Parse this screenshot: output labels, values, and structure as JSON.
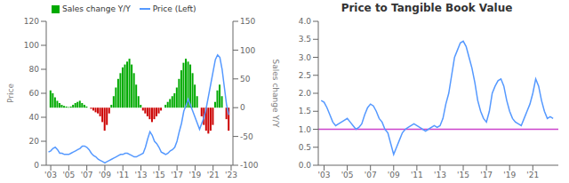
{
  "chart_data": [
    {
      "type": "bar",
      "ylabel": "Price",
      "y2label": "Sales change Y/Y",
      "legend": "upper left",
      "xlim": [
        2002.5,
        2023.2
      ],
      "xticks": [
        {
          "value": 2003,
          "label": "'03"
        },
        {
          "value": 2005,
          "label": "'05"
        },
        {
          "value": 2007,
          "label": "'07"
        },
        {
          "value": 2009,
          "label": "'09"
        },
        {
          "value": 2011,
          "label": "'11"
        },
        {
          "value": 2013,
          "label": "'13"
        },
        {
          "value": 2015,
          "label": "'15"
        },
        {
          "value": 2017,
          "label": "'17"
        },
        {
          "value": 2019,
          "label": "'19"
        },
        {
          "value": 2021,
          "label": "'21"
        },
        {
          "value": 2023,
          "label": "'23"
        }
      ],
      "ylim": [
        0,
        120
      ],
      "yticks": [
        0,
        20,
        40,
        60,
        80,
        100,
        120
      ],
      "y2lim": [
        -100,
        150
      ],
      "y2ticks": [
        -100,
        -50,
        0,
        50,
        100,
        150
      ],
      "series": [
        {
          "name": "Sales change Y/Y",
          "type": "bar",
          "axis": "y2",
          "color": "#00aa00",
          "x": [
            2003.0,
            2003.25,
            2003.5,
            2003.75,
            2004.0,
            2004.25,
            2004.5,
            2004.75,
            2005.0,
            2005.25,
            2005.5,
            2005.75,
            2006.0,
            2006.25,
            2006.5,
            2006.75,
            2007.0,
            2007.25,
            2007.5,
            2007.75,
            2008.0,
            2008.25,
            2008.5,
            2008.75,
            2009.0,
            2009.25,
            2009.5,
            2009.75,
            2010.0,
            2010.25,
            2010.5,
            2010.75,
            2011.0,
            2011.25,
            2011.5,
            2011.75,
            2012.0,
            2012.25,
            2012.5,
            2012.75,
            2013.0,
            2013.25,
            2013.5,
            2013.75,
            2014.0,
            2014.25,
            2014.5,
            2014.75,
            2015.0,
            2015.25,
            2015.5,
            2015.75,
            2016.0,
            2016.25,
            2016.5,
            2016.75,
            2017.0,
            2017.25,
            2017.5,
            2017.75,
            2018.0,
            2018.25,
            2018.5,
            2018.75,
            2019.0,
            2019.25,
            2019.5,
            2019.75,
            2020.0,
            2020.25,
            2020.5,
            2020.75,
            2021.0,
            2021.25,
            2021.5,
            2021.75,
            2022.0,
            2022.25,
            2022.5,
            2022.75
          ],
          "values": [
            30,
            25,
            18,
            12,
            8,
            5,
            3,
            2,
            1,
            2,
            5,
            8,
            10,
            12,
            8,
            5,
            2,
            0,
            -2,
            -5,
            -8,
            -10,
            -15,
            -25,
            -40,
            -30,
            -10,
            5,
            20,
            35,
            50,
            60,
            70,
            75,
            80,
            85,
            75,
            60,
            40,
            20,
            5,
            -5,
            -10,
            -15,
            -20,
            -25,
            -20,
            -15,
            -10,
            -5,
            0,
            5,
            10,
            15,
            20,
            25,
            35,
            50,
            65,
            78,
            85,
            80,
            75,
            60,
            40,
            20,
            0,
            -15,
            -30,
            -40,
            -45,
            -40,
            -30,
            10,
            30,
            40,
            20,
            0,
            -20,
            -40
          ],
          "colors": [
            "#00aa00",
            "#00aa00",
            "#00aa00",
            "#00aa00",
            "#00aa00",
            "#00aa00",
            "#00aa00",
            "#00aa00",
            "#00aa00",
            "#00aa00",
            "#00aa00",
            "#00aa00",
            "#00aa00",
            "#00aa00",
            "#00aa00",
            "#00aa00",
            "#00aa00",
            "#00aa00",
            "#cc0000",
            "#cc0000",
            "#cc0000",
            "#cc0000",
            "#cc0000",
            "#cc0000",
            "#cc0000",
            "#cc0000",
            "#cc0000",
            "#00aa00",
            "#00aa00",
            "#00aa00",
            "#00aa00",
            "#00aa00",
            "#00aa00",
            "#00aa00",
            "#00aa00",
            "#00aa00",
            "#00aa00",
            "#00aa00",
            "#00aa00",
            "#00aa00",
            "#00aa00",
            "#cc0000",
            "#cc0000",
            "#cc0000",
            "#cc0000",
            "#cc0000",
            "#cc0000",
            "#cc0000",
            "#cc0000",
            "#cc0000",
            "#00aa00",
            "#00aa00",
            "#00aa00",
            "#00aa00",
            "#00aa00",
            "#00aa00",
            "#00aa00",
            "#00aa00",
            "#00aa00",
            "#00aa00",
            "#00aa00",
            "#00aa00",
            "#00aa00",
            "#00aa00",
            "#00aa00",
            "#00aa00",
            "#00aa00",
            "#cc0000",
            "#cc0000",
            "#cc0000",
            "#cc0000",
            "#cc0000",
            "#cc0000",
            "#00aa00",
            "#00aa00",
            "#00aa00",
            "#00aa00",
            "#00aa00",
            "#cc0000",
            "#cc0000"
          ]
        },
        {
          "name": "Price (Left)",
          "type": "line",
          "color": "#5599ff",
          "x": [
            2002.75,
            2003.0,
            2003.25,
            2003.5,
            2003.75,
            2004.0,
            2004.25,
            2004.5,
            2004.75,
            2005.0,
            2005.25,
            2005.5,
            2005.75,
            2006.0,
            2006.25,
            2006.5,
            2006.75,
            2007.0,
            2007.25,
            2007.5,
            2007.75,
            2008.0,
            2008.25,
            2008.5,
            2008.75,
            2009.0,
            2009.25,
            2009.5,
            2009.75,
            2010.0,
            2010.25,
            2010.5,
            2010.75,
            2011.0,
            2011.25,
            2011.5,
            2011.75,
            2012.0,
            2012.25,
            2012.5,
            2012.75,
            2013.0,
            2013.25,
            2013.5,
            2013.75,
            2014.0,
            2014.25,
            2014.5,
            2014.75,
            2015.0,
            2015.25,
            2015.5,
            2015.75,
            2016.0,
            2016.25,
            2016.5,
            2016.75,
            2017.0,
            2017.25,
            2017.5,
            2017.75,
            2018.0,
            2018.25,
            2018.5,
            2018.75,
            2019.0,
            2019.25,
            2019.5,
            2019.75,
            2020.0,
            2020.25,
            2020.5,
            2020.75,
            2021.0,
            2021.25,
            2021.5,
            2021.75,
            2022.0,
            2022.25,
            2022.5,
            2022.75
          ],
          "values": [
            11,
            12,
            14,
            15,
            13,
            10,
            10,
            9,
            9,
            9,
            10,
            11,
            12,
            13,
            14,
            16,
            16,
            15,
            13,
            10,
            8,
            7,
            5,
            4,
            3,
            2,
            3,
            4,
            5,
            6,
            7,
            8,
            9,
            9,
            10,
            10,
            9,
            8,
            7,
            7,
            8,
            9,
            10,
            15,
            22,
            28,
            25,
            20,
            18,
            15,
            11,
            10,
            9,
            10,
            12,
            13,
            15,
            20,
            28,
            35,
            45,
            50,
            55,
            50,
            45,
            40,
            35,
            30,
            35,
            40,
            48,
            58,
            68,
            78,
            88,
            92,
            90,
            80,
            65,
            50,
            42
          ]
        }
      ]
    },
    {
      "type": "line",
      "title": "Price to Tangible Book Value",
      "xlim": [
        2002.5,
        2023.2
      ],
      "xticks": [
        {
          "value": 2003,
          "label": "'03"
        },
        {
          "value": 2005,
          "label": "'05"
        },
        {
          "value": 2007,
          "label": "'07"
        },
        {
          "value": 2009,
          "label": "'09"
        },
        {
          "value": 2011,
          "label": "'11"
        },
        {
          "value": 2013,
          "label": "'13"
        },
        {
          "value": 2015,
          "label": "'15"
        },
        {
          "value": 2017,
          "label": "'17"
        },
        {
          "value": 2019,
          "label": "'19"
        },
        {
          "value": 2021,
          "label": "'21"
        }
      ],
      "ylim": [
        0,
        4
      ],
      "yticks": [
        {
          "value": 0,
          "label": "0.0"
        },
        {
          "value": 0.5,
          "label": "0.5"
        },
        {
          "value": 1.0,
          "label": "1.0"
        },
        {
          "value": 1.5,
          "label": "1.5"
        },
        {
          "value": 2.0,
          "label": "2.0"
        },
        {
          "value": 2.5,
          "label": "2.5"
        },
        {
          "value": 3.0,
          "label": "3.0"
        },
        {
          "value": 3.5,
          "label": "3.5"
        },
        {
          "value": 4.0,
          "label": "4.0"
        }
      ],
      "reference_lines": [
        {
          "y": 1.0,
          "color": "#cc44cc"
        }
      ],
      "color": "#5599ff",
      "x": [
        2002.75,
        2003.0,
        2003.25,
        2003.5,
        2003.75,
        2004.0,
        2004.25,
        2004.5,
        2004.75,
        2005.0,
        2005.25,
        2005.5,
        2005.75,
        2006.0,
        2006.25,
        2006.5,
        2006.75,
        2007.0,
        2007.25,
        2007.5,
        2007.75,
        2008.0,
        2008.25,
        2008.5,
        2008.75,
        2009.0,
        2009.25,
        2009.5,
        2009.75,
        2010.0,
        2010.25,
        2010.5,
        2010.75,
        2011.0,
        2011.25,
        2011.5,
        2011.75,
        2012.0,
        2012.25,
        2012.5,
        2012.75,
        2013.0,
        2013.25,
        2013.5,
        2013.75,
        2014.0,
        2014.25,
        2014.5,
        2014.75,
        2015.0,
        2015.25,
        2015.5,
        2015.75,
        2016.0,
        2016.25,
        2016.5,
        2016.75,
        2017.0,
        2017.25,
        2017.5,
        2017.75,
        2018.0,
        2018.25,
        2018.5,
        2018.75,
        2019.0,
        2019.25,
        2019.5,
        2019.75,
        2020.0,
        2020.25,
        2020.5,
        2020.75,
        2021.0,
        2021.25,
        2021.5,
        2021.75,
        2022.0,
        2022.25,
        2022.5,
        2022.75
      ],
      "values": [
        1.8,
        1.75,
        1.6,
        1.4,
        1.2,
        1.1,
        1.15,
        1.2,
        1.25,
        1.3,
        1.2,
        1.1,
        1.0,
        1.05,
        1.15,
        1.4,
        1.6,
        1.7,
        1.65,
        1.5,
        1.3,
        1.2,
        1.0,
        0.9,
        0.6,
        0.3,
        0.5,
        0.7,
        0.9,
        1.0,
        1.05,
        1.1,
        1.15,
        1.1,
        1.05,
        1.0,
        0.95,
        1.0,
        1.05,
        1.1,
        1.05,
        1.1,
        1.3,
        1.7,
        2.0,
        2.5,
        3.0,
        3.2,
        3.4,
        3.45,
        3.3,
        3.0,
        2.7,
        2.3,
        1.8,
        1.5,
        1.3,
        1.2,
        1.5,
        2.0,
        2.2,
        2.35,
        2.4,
        2.2,
        1.8,
        1.5,
        1.3,
        1.2,
        1.15,
        1.1,
        1.3,
        1.5,
        1.7,
        2.0,
        2.4,
        2.2,
        1.8,
        1.5,
        1.3,
        1.35,
        1.3
      ]
    }
  ]
}
